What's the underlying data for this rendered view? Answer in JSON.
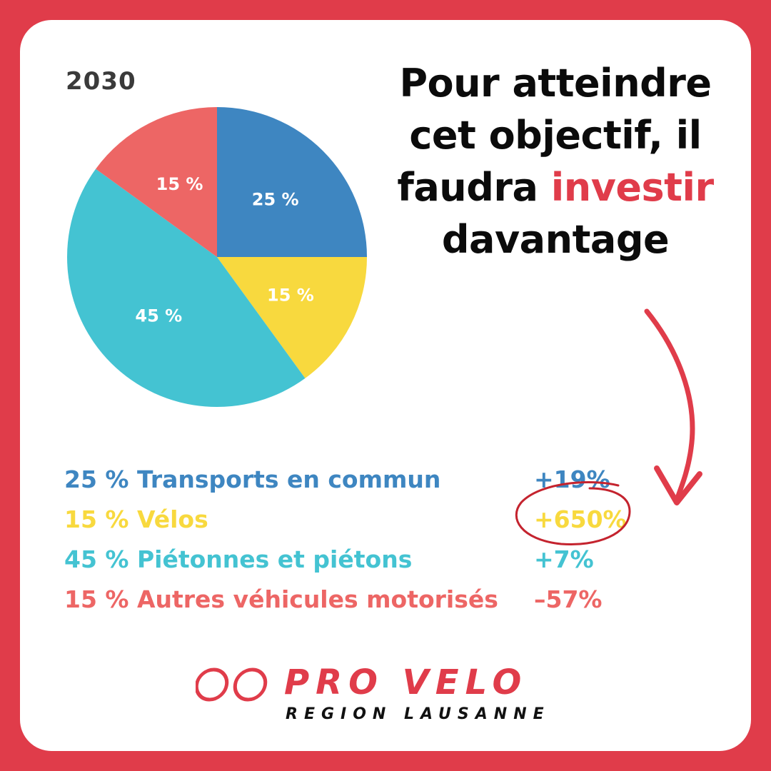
{
  "chart_data": {
    "type": "pie",
    "title": "2030",
    "series": [
      {
        "label": "25 %",
        "value": 25,
        "color": "#3e86c1"
      },
      {
        "label": "15 %",
        "value": 15,
        "color": "#f8d93e"
      },
      {
        "label": "45 %",
        "value": 45,
        "color": "#44c3d2"
      },
      {
        "label": "15 %",
        "value": 15,
        "color": "#ed6665"
      }
    ],
    "legend": [
      {
        "text": "25 % Transports en commun",
        "change": "+19%",
        "color": "#3e86c1"
      },
      {
        "text": "15 % Vélos",
        "change": "+650%",
        "color": "#f8d93e"
      },
      {
        "text": "45 % Piétonnes et piétons",
        "change": "+7%",
        "color": "#44c3d2"
      },
      {
        "text": "15 % Autres véhicules motorisés",
        "change": "–57%",
        "color": "#ed6665"
      }
    ]
  },
  "headline": {
    "line1": "Pour atteindre",
    "line2": "cet objectif, il",
    "line3_start": "faudra ",
    "line3_highlight": "investir",
    "line4": "davantage"
  },
  "logo": {
    "name": "PRO VELO",
    "region": "REGION LAUSANNE"
  },
  "colors": {
    "brand_red": "#e03c4a",
    "background": "#ffffff"
  }
}
